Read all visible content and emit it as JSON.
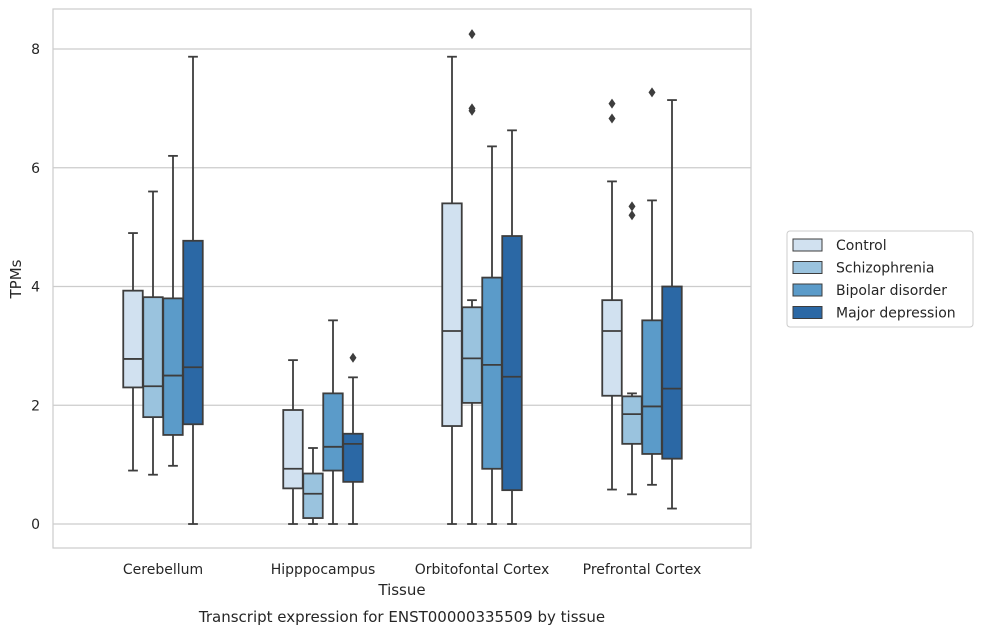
{
  "caption": "Transcript expression for ENST00000335509 by tissue",
  "chart_data": {
    "type": "box",
    "xlabel": "Tissue",
    "ylabel": "TPMs",
    "ylim": [
      -0.4,
      8.65
    ],
    "yticks": [
      0,
      2,
      4,
      6,
      8
    ],
    "grid": "horizontal",
    "legend_position": "right",
    "categories": [
      "Cerebellum",
      "Hipppocampus",
      "Orbitofontal Cortex",
      "Prefrontal Cortex"
    ],
    "series": [
      {
        "name": "Control",
        "color": "#d1e1f0",
        "boxes": [
          {
            "whisker_low": 0.9,
            "q1": 2.3,
            "median": 2.78,
            "q3": 3.93,
            "whisker_high": 4.9,
            "outliers": []
          },
          {
            "whisker_low": 0.0,
            "q1": 0.6,
            "median": 0.93,
            "q3": 1.92,
            "whisker_high": 2.76,
            "outliers": []
          },
          {
            "whisker_low": 0.0,
            "q1": 1.65,
            "median": 3.25,
            "q3": 5.4,
            "whisker_high": 7.87,
            "outliers": []
          },
          {
            "whisker_low": 0.58,
            "q1": 2.16,
            "median": 3.25,
            "q3": 3.77,
            "whisker_high": 5.77,
            "outliers": [
              6.83,
              7.08
            ]
          }
        ]
      },
      {
        "name": "Schizophrenia",
        "color": "#9ac3de",
        "boxes": [
          {
            "whisker_low": 0.83,
            "q1": 1.8,
            "median": 2.32,
            "q3": 3.82,
            "whisker_high": 5.6,
            "outliers": []
          },
          {
            "whisker_low": 0.0,
            "q1": 0.1,
            "median": 0.51,
            "q3": 0.85,
            "whisker_high": 1.28,
            "outliers": []
          },
          {
            "whisker_low": 0.0,
            "q1": 2.04,
            "median": 2.79,
            "q3": 3.65,
            "whisker_high": 3.77,
            "outliers": [
              6.96,
              7.0,
              8.25
            ]
          },
          {
            "whisker_low": 0.5,
            "q1": 1.35,
            "median": 1.85,
            "q3": 2.15,
            "whisker_high": 2.2,
            "outliers": [
              5.2,
              5.35
            ]
          }
        ]
      },
      {
        "name": "Bipolar disorder",
        "color": "#5b9bc9",
        "boxes": [
          {
            "whisker_low": 0.98,
            "q1": 1.5,
            "median": 2.5,
            "q3": 3.8,
            "whisker_high": 6.2,
            "outliers": []
          },
          {
            "whisker_low": 0.0,
            "q1": 0.9,
            "median": 1.3,
            "q3": 2.2,
            "whisker_high": 3.43,
            "outliers": []
          },
          {
            "whisker_low": 0.0,
            "q1": 0.93,
            "median": 2.68,
            "q3": 4.15,
            "whisker_high": 6.36,
            "outliers": []
          },
          {
            "whisker_low": 0.66,
            "q1": 1.18,
            "median": 1.98,
            "q3": 3.43,
            "whisker_high": 5.45,
            "outliers": [
              7.27
            ]
          }
        ]
      },
      {
        "name": "Major depression",
        "color": "#2b68a5",
        "boxes": [
          {
            "whisker_low": 0.0,
            "q1": 1.68,
            "median": 2.64,
            "q3": 4.77,
            "whisker_high": 7.87,
            "outliers": []
          },
          {
            "whisker_low": 0.0,
            "q1": 0.71,
            "median": 1.35,
            "q3": 1.52,
            "whisker_high": 2.47,
            "outliers": [
              2.8
            ]
          },
          {
            "whisker_low": 0.0,
            "q1": 0.57,
            "median": 2.48,
            "q3": 4.85,
            "whisker_high": 6.63,
            "outliers": []
          },
          {
            "whisker_low": 0.26,
            "q1": 1.1,
            "median": 2.28,
            "q3": 4.0,
            "whisker_high": 7.14,
            "outliers": []
          }
        ]
      }
    ]
  }
}
